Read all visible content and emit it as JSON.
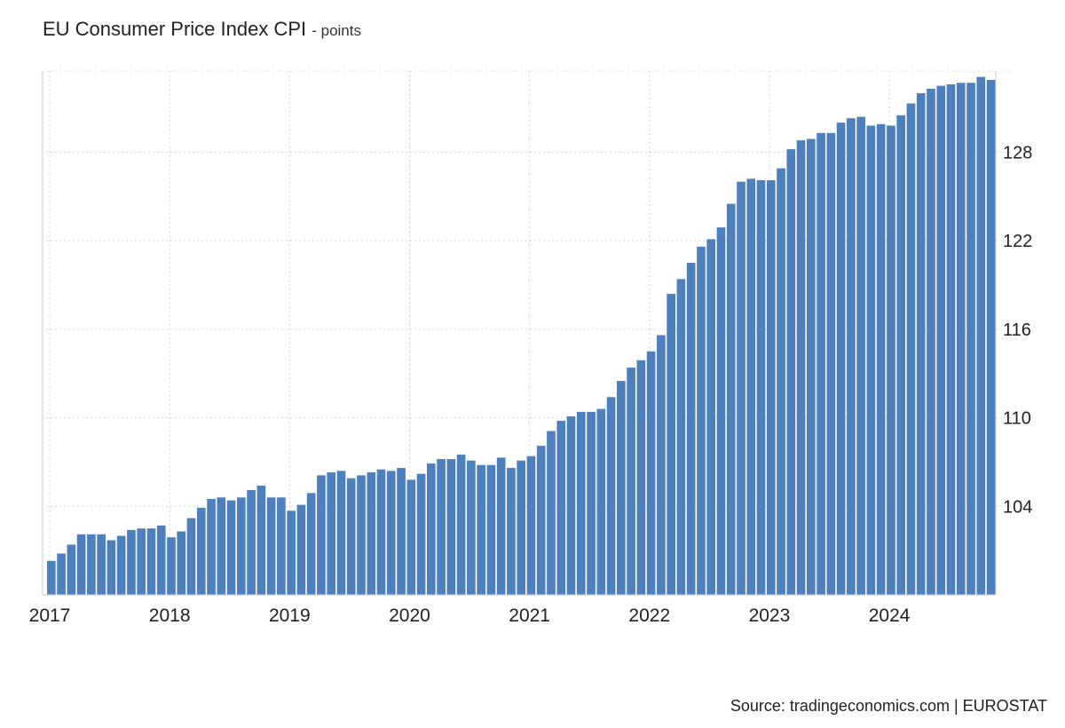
{
  "header": {
    "title": "EU Consumer Price Index CPI",
    "unit_suffix": "- points"
  },
  "footer": {
    "source": "Source: tradingeconomics.com | EUROSTAT"
  },
  "colors": {
    "bar": "#4d80bd",
    "grid": "#d6d6d6",
    "axis": "#cccccc",
    "text": "#222222"
  },
  "chart_data": {
    "type": "bar",
    "title": "EU Consumer Price Index CPI",
    "ylabel": "points",
    "xlabel": "",
    "ylim": [
      98,
      133.5
    ],
    "yticks": [
      104,
      110,
      116,
      122,
      128
    ],
    "y_axis_position": "right",
    "grid": true,
    "start": "2017-01",
    "x_tick_labels": [
      "2017",
      "2018",
      "2019",
      "2020",
      "2021",
      "2022",
      "2023",
      "2024"
    ],
    "categories": [
      "2017-01",
      "2017-02",
      "2017-03",
      "2017-04",
      "2017-05",
      "2017-06",
      "2017-07",
      "2017-08",
      "2017-09",
      "2017-10",
      "2017-11",
      "2017-12",
      "2018-01",
      "2018-02",
      "2018-03",
      "2018-04",
      "2018-05",
      "2018-06",
      "2018-07",
      "2018-08",
      "2018-09",
      "2018-10",
      "2018-11",
      "2018-12",
      "2019-01",
      "2019-02",
      "2019-03",
      "2019-04",
      "2019-05",
      "2019-06",
      "2019-07",
      "2019-08",
      "2019-09",
      "2019-10",
      "2019-11",
      "2019-12",
      "2020-01",
      "2020-02",
      "2020-03",
      "2020-04",
      "2020-05",
      "2020-06",
      "2020-07",
      "2020-08",
      "2020-09",
      "2020-10",
      "2020-11",
      "2020-12",
      "2021-01",
      "2021-02",
      "2021-03",
      "2021-04",
      "2021-05",
      "2021-06",
      "2021-07",
      "2021-08",
      "2021-09",
      "2021-10",
      "2021-11",
      "2021-12",
      "2022-01",
      "2022-02",
      "2022-03",
      "2022-04",
      "2022-05",
      "2022-06",
      "2022-07",
      "2022-08",
      "2022-09",
      "2022-10",
      "2022-11",
      "2022-12",
      "2023-01",
      "2023-02",
      "2023-03",
      "2023-04",
      "2023-05",
      "2023-06",
      "2023-07",
      "2023-08",
      "2023-09",
      "2023-10",
      "2023-11",
      "2023-12",
      "2024-01",
      "2024-02",
      "2024-03",
      "2024-04",
      "2024-05",
      "2024-06",
      "2024-07",
      "2024-08",
      "2024-09",
      "2024-10",
      "2024-11"
    ],
    "values": [
      100.3,
      100.8,
      101.4,
      102.1,
      102.1,
      102.1,
      101.7,
      102.0,
      102.4,
      102.5,
      102.5,
      102.7,
      101.9,
      102.3,
      103.2,
      103.9,
      104.5,
      104.6,
      104.4,
      104.6,
      105.1,
      105.4,
      104.6,
      104.6,
      103.7,
      104.1,
      104.9,
      106.1,
      106.3,
      106.4,
      105.9,
      106.1,
      106.3,
      106.5,
      106.4,
      106.6,
      105.8,
      106.2,
      106.9,
      107.2,
      107.2,
      107.5,
      107.1,
      106.8,
      106.8,
      107.3,
      106.6,
      107.1,
      107.4,
      108.1,
      109.1,
      109.8,
      110.1,
      110.4,
      110.4,
      110.6,
      111.4,
      112.5,
      113.4,
      113.9,
      114.5,
      115.6,
      118.4,
      119.4,
      120.5,
      121.6,
      122.1,
      122.9,
      124.5,
      126.0,
      126.2,
      126.1,
      126.1,
      126.9,
      128.2,
      128.8,
      128.9,
      129.3,
      129.3,
      130.0,
      130.3,
      130.4,
      129.8,
      129.9,
      129.8,
      130.5,
      131.3,
      132.0,
      132.3,
      132.5,
      132.6,
      132.7,
      132.7,
      133.1,
      132.9
    ]
  }
}
